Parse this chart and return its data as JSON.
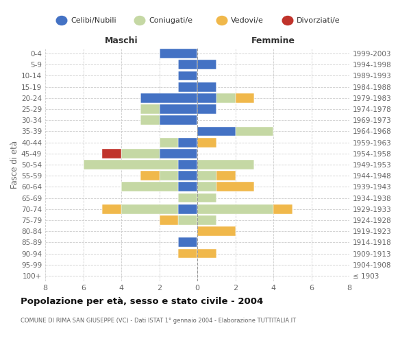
{
  "age_groups": [
    "100+",
    "95-99",
    "90-94",
    "85-89",
    "80-84",
    "75-79",
    "70-74",
    "65-69",
    "60-64",
    "55-59",
    "50-54",
    "45-49",
    "40-44",
    "35-39",
    "30-34",
    "25-29",
    "20-24",
    "15-19",
    "10-14",
    "5-9",
    "0-4"
  ],
  "birth_years": [
    "≤ 1903",
    "1904-1908",
    "1909-1913",
    "1914-1918",
    "1919-1923",
    "1924-1928",
    "1929-1933",
    "1934-1938",
    "1939-1943",
    "1944-1948",
    "1949-1953",
    "1954-1958",
    "1959-1963",
    "1964-1968",
    "1969-1973",
    "1974-1978",
    "1979-1983",
    "1984-1988",
    "1989-1993",
    "1994-1998",
    "1999-2003"
  ],
  "maschi": {
    "celibi": [
      0,
      0,
      0,
      1,
      0,
      0,
      1,
      0,
      1,
      1,
      1,
      2,
      1,
      0,
      2,
      2,
      3,
      1,
      1,
      1,
      2
    ],
    "coniugati": [
      0,
      0,
      0,
      0,
      0,
      1,
      3,
      1,
      3,
      1,
      5,
      2,
      1,
      0,
      1,
      1,
      0,
      0,
      0,
      0,
      0
    ],
    "vedovi": [
      0,
      0,
      1,
      0,
      0,
      1,
      1,
      0,
      0,
      1,
      0,
      0,
      0,
      0,
      0,
      0,
      0,
      0,
      0,
      0,
      0
    ],
    "divorziati": [
      0,
      0,
      0,
      0,
      0,
      0,
      0,
      0,
      0,
      0,
      0,
      1,
      0,
      0,
      0,
      0,
      0,
      0,
      0,
      0,
      0
    ]
  },
  "femmine": {
    "nubili": [
      0,
      0,
      0,
      0,
      0,
      0,
      0,
      0,
      0,
      0,
      0,
      0,
      0,
      2,
      0,
      1,
      1,
      1,
      0,
      1,
      0
    ],
    "coniugate": [
      0,
      0,
      0,
      0,
      0,
      1,
      4,
      1,
      1,
      1,
      3,
      0,
      0,
      2,
      0,
      0,
      1,
      0,
      0,
      0,
      0
    ],
    "vedove": [
      0,
      0,
      1,
      0,
      2,
      0,
      1,
      0,
      2,
      1,
      0,
      0,
      1,
      0,
      0,
      0,
      1,
      0,
      0,
      0,
      0
    ],
    "divorziate": [
      0,
      0,
      0,
      0,
      0,
      0,
      0,
      0,
      0,
      0,
      0,
      0,
      0,
      0,
      0,
      0,
      0,
      0,
      0,
      0,
      0
    ]
  },
  "colors": {
    "celibi_nubili": "#4472c4",
    "coniugati": "#c5d8a4",
    "vedovi": "#f0b84b",
    "divorziati": "#c0332b"
  },
  "xlim": 8,
  "title": "Popolazione per età, sesso e stato civile - 2004",
  "subtitle": "COMUNE DI RIMA SAN GIUSEPPE (VC) - Dati ISTAT 1° gennaio 2004 - Elaborazione TUTTITALIA.IT",
  "ylabel_left": "Fasce di età",
  "xlabel_left": "Maschi",
  "xlabel_right": "Femmine",
  "background_color": "#ffffff",
  "grid_color": "#cccccc",
  "legend_labels": [
    "Celibi/Nubili",
    "Coniugati/e",
    "Vedovi/e",
    "Divorziati/e"
  ]
}
